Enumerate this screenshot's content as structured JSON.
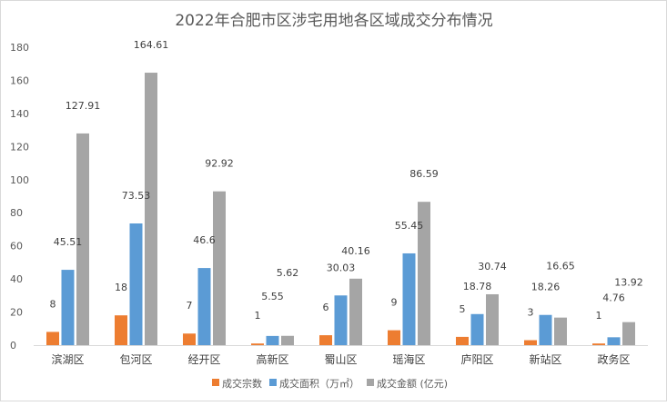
{
  "chart_data": {
    "type": "bar",
    "title": "2022年合肥市区涉宅用地各区域成交分布情况",
    "categories": [
      "滨湖区",
      "包河区",
      "经开区",
      "高新区",
      "蜀山区",
      "瑶海区",
      "庐阳区",
      "新站区",
      "政务区"
    ],
    "series": [
      {
        "name": "成交宗数",
        "color": "#ED7D31",
        "values": [
          8,
          18,
          7,
          1,
          6,
          9,
          5,
          3,
          1
        ]
      },
      {
        "name": "成交面积（万㎡）",
        "color": "#5B9BD5",
        "values": [
          45.51,
          73.53,
          46.6,
          5.55,
          30.03,
          55.45,
          18.78,
          18.26,
          4.76
        ]
      },
      {
        "name": "成交金额 (亿元)",
        "color": "#A5A5A5",
        "values": [
          127.91,
          164.61,
          92.92,
          5.62,
          40.16,
          86.59,
          30.74,
          16.65,
          13.92
        ]
      }
    ],
    "ylim": [
      0,
      180
    ],
    "yticks": [
      0,
      20,
      40,
      60,
      80,
      100,
      120,
      140,
      160,
      180
    ],
    "grid": false,
    "legend": "bottom"
  }
}
